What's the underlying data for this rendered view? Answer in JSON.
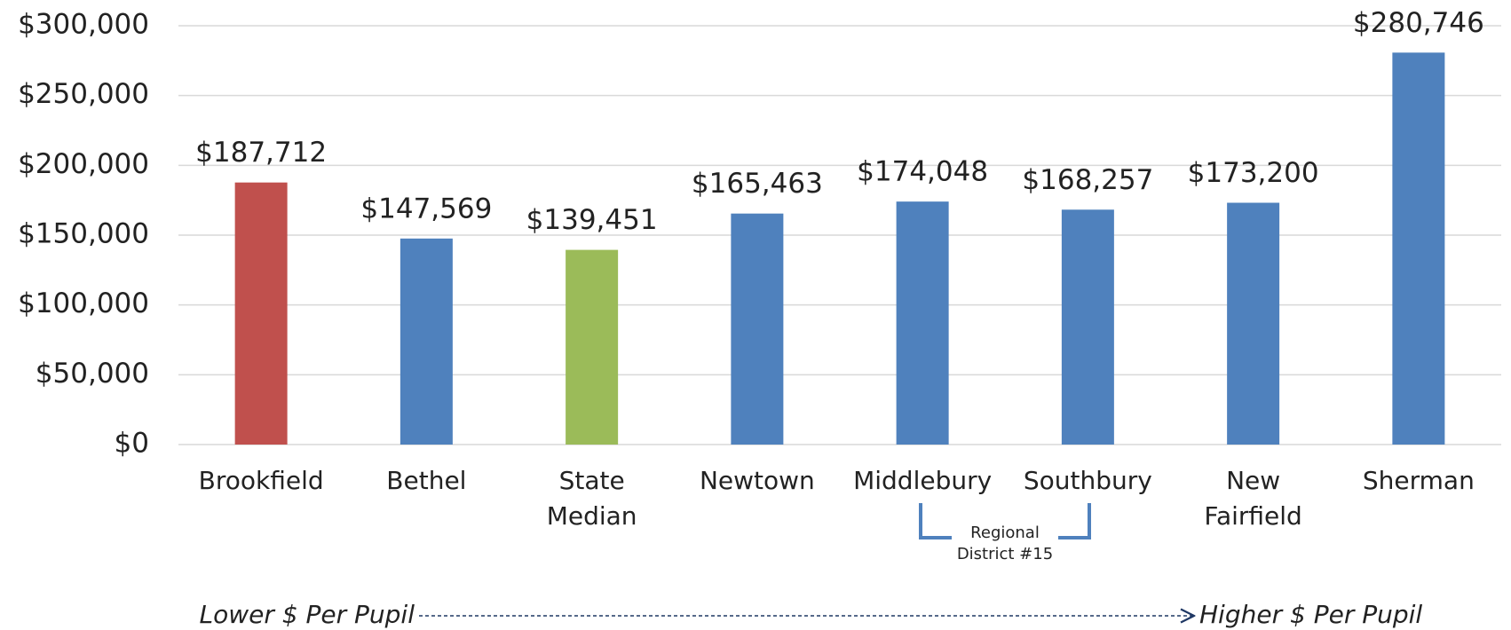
{
  "chart_data": {
    "type": "bar",
    "categories": [
      "Brookfield",
      "Bethel",
      "State Median",
      "Newtown",
      "Middlebury",
      "Southbury",
      "New Fairfield",
      "Sherman"
    ],
    "values": [
      187712,
      147569,
      139451,
      165463,
      174048,
      168257,
      173200,
      280746
    ],
    "value_labels": [
      "$187,712",
      "$147,569",
      "$139,451",
      "$165,463",
      "$174,048",
      "$168,257",
      "$173,200",
      "$280,746"
    ],
    "colors": [
      "#c0504d",
      "#4f81bd",
      "#9bbb59",
      "#4f81bd",
      "#4f81bd",
      "#4f81bd",
      "#4f81bd",
      "#4f81bd"
    ],
    "ylim": [
      0,
      300000
    ],
    "yticks": [
      {
        "value": 0,
        "label": "$0"
      },
      {
        "value": 50000,
        "label": "$50,000"
      },
      {
        "value": 100000,
        "label": "$100,000"
      },
      {
        "value": 150000,
        "label": "$150,000"
      },
      {
        "value": 200000,
        "label": "$200,000"
      },
      {
        "value": 250000,
        "label": "$250,000"
      },
      {
        "value": 300000,
        "label": "$300,000"
      }
    ],
    "grid": true,
    "annotations": {
      "group": [
        "Regional",
        "District #15"
      ],
      "low": "Lower $ Per Pupil",
      "high": "Higher $ Per Pupil"
    }
  }
}
